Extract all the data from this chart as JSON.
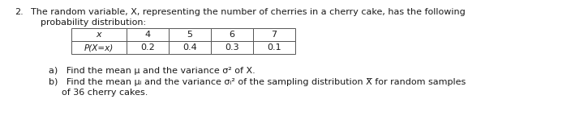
{
  "number": "2.",
  "main_text_line1": "The random variable, X, representing the number of cherries in a cherry cake, has the following",
  "main_text_line2": "probability distribution:",
  "table_headers": [
    "x",
    "4",
    "5",
    "6",
    "7"
  ],
  "table_row_label": "P(X=x)",
  "table_row_values": [
    "0.2",
    "0.4",
    "0.3",
    "0.1"
  ],
  "part_a": "a)   Find the mean μ and the variance σ² of X.",
  "part_b1": "b)   Find the mean μᵢ and the variance σᵢ² of the sampling distribution Χ̅ for random samples",
  "part_b2": "of 36 cherry cakes.",
  "bg_color": "#ffffff",
  "text_color": "#1a1a1a",
  "gray_text": "#3a3a3a",
  "font_size": 8.0,
  "small_font": 7.5
}
